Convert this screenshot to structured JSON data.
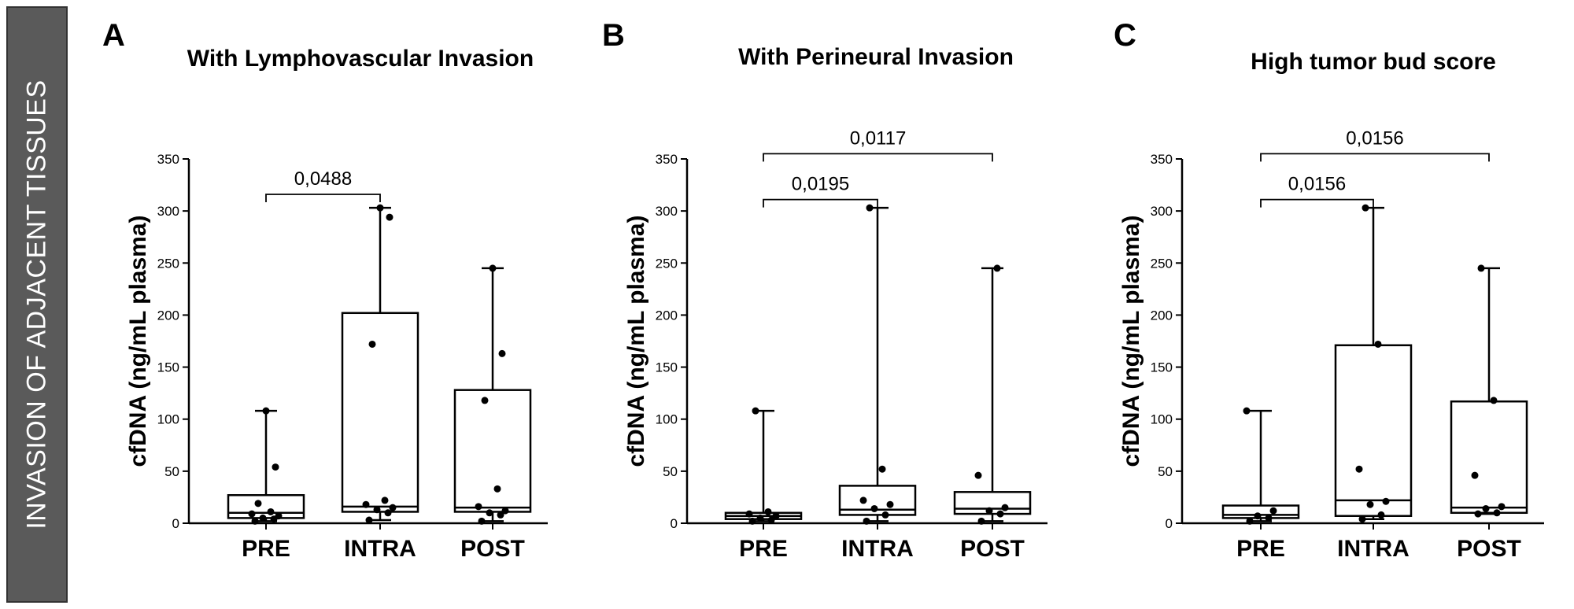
{
  "sidebar": {
    "label": "INVASION OF ADJACENT TISSUES"
  },
  "chart_data": [
    {
      "panel": "A",
      "type": "box",
      "title": "With Lymphovascular Invasion",
      "ylabel": "cfDNA (ng/mL plasma)",
      "ylim": [
        0,
        350
      ],
      "yticks": [
        0,
        50,
        100,
        150,
        200,
        250,
        300,
        350
      ],
      "categories": [
        "PRE",
        "INTRA",
        "POST"
      ],
      "boxes": [
        {
          "category": "PRE",
          "min": 2,
          "q1": 5,
          "median": 10,
          "q3": 27,
          "max": 108,
          "points": [
            2,
            4,
            5,
            7,
            9,
            11,
            19,
            54,
            108
          ]
        },
        {
          "category": "INTRA",
          "min": 3,
          "q1": 11,
          "median": 16,
          "q3": 202,
          "max": 303,
          "points": [
            3,
            10,
            13,
            15,
            18,
            22,
            172,
            294,
            303
          ]
        },
        {
          "category": "POST",
          "min": 2,
          "q1": 11,
          "median": 15,
          "q3": 128,
          "max": 245,
          "points": [
            2,
            8,
            10,
            12,
            16,
            33,
            118,
            163,
            245
          ]
        }
      ],
      "comparisons": [
        {
          "from": "PRE",
          "to": "INTRA",
          "p": "0,0488"
        }
      ]
    },
    {
      "panel": "B",
      "type": "box",
      "title": "With Perineural Invasion",
      "ylabel": "cfDNA (ng/mL plasma)",
      "ylim": [
        0,
        350
      ],
      "yticks": [
        0,
        50,
        100,
        150,
        200,
        250,
        300,
        350
      ],
      "categories": [
        "PRE",
        "INTRA",
        "POST"
      ],
      "boxes": [
        {
          "category": "PRE",
          "min": 2,
          "q1": 4,
          "median": 7,
          "q3": 10,
          "max": 108,
          "points": [
            2,
            3,
            5,
            7,
            9,
            11,
            108
          ]
        },
        {
          "category": "INTRA",
          "min": 2,
          "q1": 8,
          "median": 13,
          "q3": 36,
          "max": 303,
          "points": [
            2,
            8,
            14,
            18,
            22,
            52,
            303
          ]
        },
        {
          "category": "POST",
          "min": 2,
          "q1": 9,
          "median": 14,
          "q3": 30,
          "max": 245,
          "points": [
            2,
            9,
            12,
            15,
            46,
            245
          ]
        }
      ],
      "comparisons": [
        {
          "from": "PRE",
          "to": "INTRA",
          "p": "0,0195"
        },
        {
          "from": "PRE",
          "to": "POST",
          "p": "0,0117"
        }
      ]
    },
    {
      "panel": "C",
      "type": "box",
      "title": "High tumor bud score",
      "ylabel": "cfDNA (ng/mL plasma)",
      "ylim": [
        0,
        350
      ],
      "yticks": [
        0,
        50,
        100,
        150,
        200,
        250,
        300,
        350
      ],
      "categories": [
        "PRE",
        "INTRA",
        "POST"
      ],
      "boxes": [
        {
          "category": "PRE",
          "min": 2,
          "q1": 5,
          "median": 8,
          "q3": 17,
          "max": 108,
          "points": [
            2,
            5,
            7,
            12,
            108
          ]
        },
        {
          "category": "INTRA",
          "min": 4,
          "q1": 7,
          "median": 22,
          "q3": 171,
          "max": 303,
          "points": [
            4,
            8,
            18,
            21,
            52,
            172,
            303
          ]
        },
        {
          "category": "POST",
          "min": 9,
          "q1": 10,
          "median": 15,
          "q3": 117,
          "max": 245,
          "points": [
            9,
            10,
            14,
            16,
            46,
            118,
            245
          ]
        }
      ],
      "comparisons": [
        {
          "from": "PRE",
          "to": "INTRA",
          "p": "0,0156"
        },
        {
          "from": "PRE",
          "to": "POST",
          "p": "0,0156"
        }
      ]
    }
  ]
}
